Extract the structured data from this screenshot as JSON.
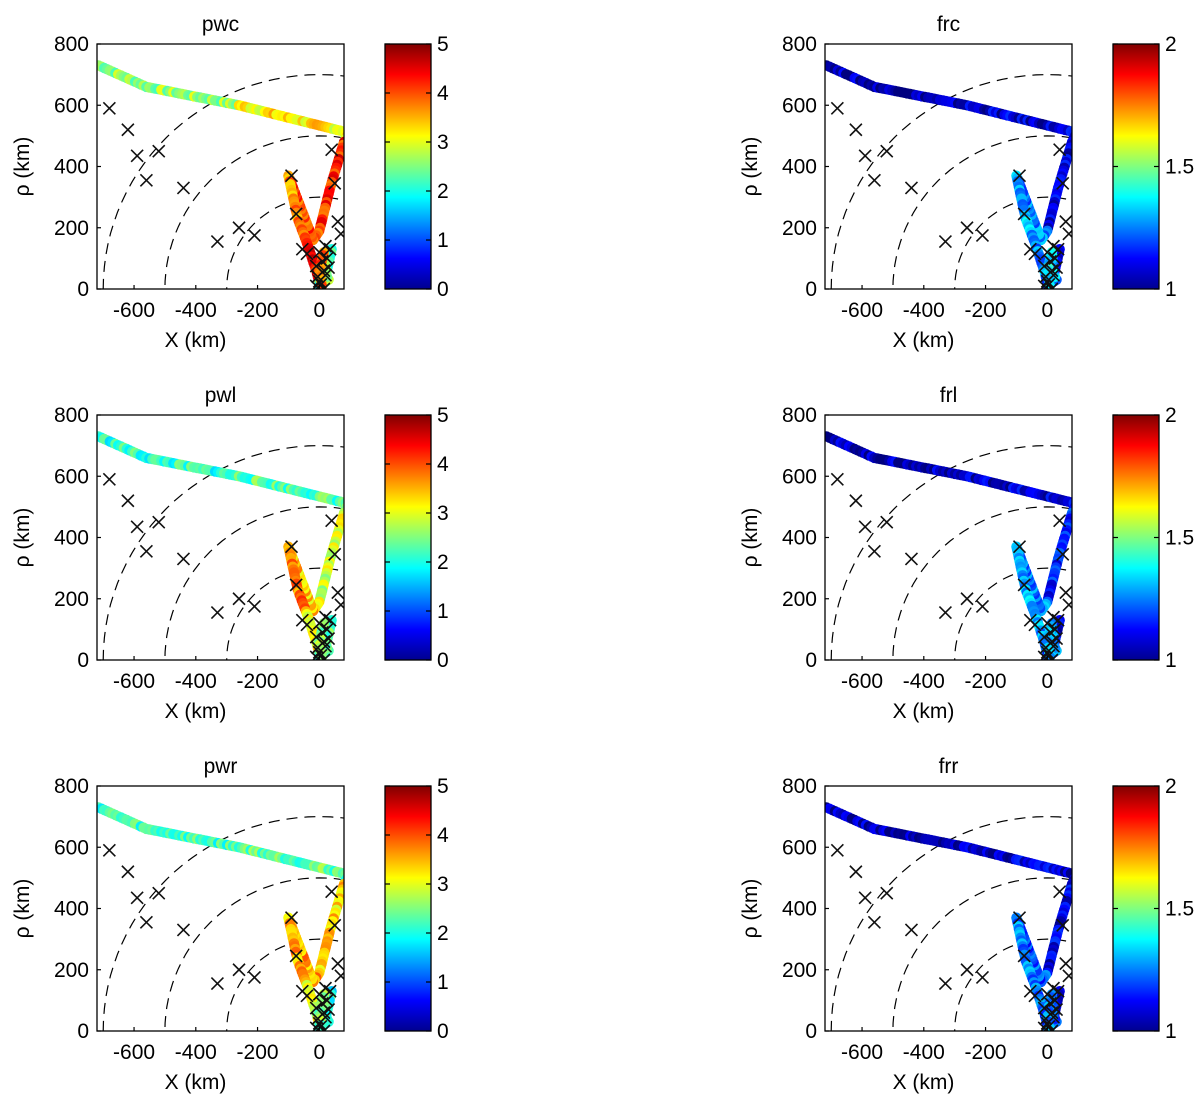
{
  "chart_data": [
    {
      "type": "scatter",
      "title": "pwc",
      "xlabel": "X (km)",
      "ylabel": "ρ (km)",
      "xlim": [
        -720,
        80
      ],
      "ylim": [
        0,
        800
      ],
      "xticks": [
        -600,
        -400,
        -200,
        0
      ],
      "xtick_labels": [
        "-600",
        "-400",
        "-200",
        "0"
      ],
      "yticks": [
        0,
        200,
        400,
        600,
        800
      ],
      "ytick_labels": [
        "0",
        "200",
        "400",
        "600",
        "800"
      ],
      "colorbar": {
        "cmap": "jet",
        "range": [
          0,
          5
        ],
        "ticks": [
          0,
          1,
          2,
          3,
          4,
          5
        ],
        "tick_labels": [
          "0",
          "1",
          "2",
          "3",
          "4",
          "5"
        ]
      },
      "dashed_arcs_radius_km": [
        300,
        500,
        700
      ],
      "segment_values": [
        2.6,
        3.2,
        4.2,
        4.1,
        3.7,
        4.3,
        3.1,
        2.3,
        2.0,
        2.8,
        3.9
      ]
    },
    {
      "type": "scatter",
      "title": "frc",
      "xlabel": "X (km)",
      "ylabel": "ρ (km)",
      "xlim": [
        -720,
        80
      ],
      "ylim": [
        0,
        800
      ],
      "xticks": [
        -600,
        -400,
        -200,
        0
      ],
      "xtick_labels": [
        "-600",
        "-400",
        "-200",
        "0"
      ],
      "yticks": [
        0,
        200,
        400,
        600,
        800
      ],
      "ytick_labels": [
        "0",
        "200",
        "400",
        "600",
        "800"
      ],
      "colorbar": {
        "cmap": "jet",
        "range": [
          1,
          2
        ],
        "ticks": [
          1,
          1.5,
          2
        ],
        "tick_labels": [
          "1",
          "1.5",
          "2"
        ]
      },
      "dashed_arcs_radius_km": [
        300,
        500,
        700
      ],
      "segment_values": [
        1.05,
        1.08,
        1.1,
        1.25,
        1.3,
        1.25,
        1.15,
        1.1,
        1.2,
        1.3,
        1.35
      ]
    },
    {
      "type": "scatter",
      "title": "pwl",
      "xlabel": "X (km)",
      "ylabel": "ρ (km)",
      "xlim": [
        -720,
        80
      ],
      "ylim": [
        0,
        800
      ],
      "xticks": [
        -600,
        -400,
        -200,
        0
      ],
      "xtick_labels": [
        "-600",
        "-400",
        "-200",
        "0"
      ],
      "yticks": [
        0,
        200,
        400,
        600,
        800
      ],
      "ytick_labels": [
        "0",
        "200",
        "400",
        "600",
        "800"
      ],
      "colorbar": {
        "cmap": "jet",
        "range": [
          0,
          5
        ],
        "ticks": [
          0,
          1,
          2,
          3,
          4,
          5
        ],
        "tick_labels": [
          "0",
          "1",
          "2",
          "3",
          "4",
          "5"
        ]
      },
      "dashed_arcs_radius_km": [
        300,
        500,
        700
      ],
      "segment_values": [
        2.1,
        2.3,
        2.9,
        3.4,
        3.8,
        3.2,
        2.8,
        2.4,
        2.0,
        2.3,
        2.6
      ]
    },
    {
      "type": "scatter",
      "title": "frl",
      "xlabel": "X (km)",
      "ylabel": "ρ (km)",
      "xlim": [
        -720,
        80
      ],
      "ylim": [
        0,
        800
      ],
      "xticks": [
        -600,
        -400,
        -200,
        0
      ],
      "xtick_labels": [
        "-600",
        "-400",
        "-200",
        "0"
      ],
      "yticks": [
        0,
        200,
        400,
        600,
        800
      ],
      "ytick_labels": [
        "0",
        "200",
        "400",
        "600",
        "800"
      ],
      "colorbar": {
        "cmap": "jet",
        "range": [
          1,
          2
        ],
        "ticks": [
          1,
          1.5,
          2
        ],
        "tick_labels": [
          "1",
          "1.5",
          "2"
        ]
      },
      "dashed_arcs_radius_km": [
        300,
        500,
        700
      ],
      "segment_values": [
        1.05,
        1.08,
        1.15,
        1.25,
        1.3,
        1.28,
        1.2,
        1.1,
        1.15,
        1.25,
        1.3
      ]
    },
    {
      "type": "scatter",
      "title": "pwr",
      "xlabel": "X (km)",
      "ylabel": "ρ (km)",
      "xlim": [
        -720,
        80
      ],
      "ylim": [
        0,
        800
      ],
      "xticks": [
        -600,
        -400,
        -200,
        0
      ],
      "xtick_labels": [
        "-600",
        "-400",
        "-200",
        "0"
      ],
      "yticks": [
        0,
        200,
        400,
        600,
        800
      ],
      "ytick_labels": [
        "0",
        "200",
        "400",
        "600",
        "800"
      ],
      "colorbar": {
        "cmap": "jet",
        "range": [
          0,
          5
        ],
        "ticks": [
          0,
          1,
          2,
          3,
          4,
          5
        ],
        "tick_labels": [
          "0",
          "1",
          "2",
          "3",
          "4",
          "5"
        ]
      },
      "dashed_arcs_radius_km": [
        300,
        500,
        700
      ],
      "segment_values": [
        2.2,
        2.4,
        3.3,
        3.6,
        3.5,
        3.0,
        2.4,
        2.0,
        1.8,
        2.2,
        2.5
      ]
    },
    {
      "type": "scatter",
      "title": "frr",
      "xlabel": "X (km)",
      "ylabel": "ρ (km)",
      "xlim": [
        -720,
        80
      ],
      "ylim": [
        0,
        800
      ],
      "xticks": [
        -600,
        -400,
        -200,
        0
      ],
      "xtick_labels": [
        "-600",
        "-400",
        "-200",
        "0"
      ],
      "yticks": [
        0,
        200,
        400,
        600,
        800
      ],
      "ytick_labels": [
        "0",
        "200",
        "400",
        "600",
        "800"
      ],
      "colorbar": {
        "cmap": "jet",
        "range": [
          1,
          2
        ],
        "ticks": [
          1,
          1.5,
          2
        ],
        "tick_labels": [
          "1",
          "1.5",
          "2"
        ]
      },
      "dashed_arcs_radius_km": [
        300,
        500,
        700
      ],
      "segment_values": [
        1.05,
        1.08,
        1.1,
        1.2,
        1.25,
        1.22,
        1.15,
        1.1,
        1.15,
        1.2,
        1.25
      ]
    }
  ],
  "trajectory_km": {
    "x": [
      -715,
      -560,
      -260,
      95,
      80,
      35,
      0,
      -20,
      -100,
      -70,
      -40,
      -10,
      0,
      30,
      40,
      20,
      10,
      0,
      30,
      20,
      15,
      0,
      10
    ],
    "y": [
      730,
      660,
      600,
      510,
      480,
      330,
      190,
      160,
      370,
      230,
      150,
      60,
      20,
      110,
      130,
      40,
      80,
      10,
      30,
      50,
      120,
      60,
      0
    ]
  },
  "crosses_km": {
    "x": [
      -680,
      -620,
      -590,
      -560,
      -330,
      -440,
      -520,
      -260,
      -210,
      -90,
      -75,
      -55,
      -40,
      -10,
      40,
      50,
      60,
      70,
      20,
      10,
      0,
      15,
      25,
      -5,
      30,
      5,
      20,
      -10,
      35,
      15,
      0
    ],
    "y": [
      590,
      520,
      435,
      355,
      155,
      330,
      450,
      200,
      175,
      370,
      245,
      130,
      115,
      10,
      455,
      345,
      220,
      180,
      140,
      90,
      120,
      60,
      100,
      40,
      70,
      15,
      45,
      75,
      130,
      0,
      25
    ]
  }
}
